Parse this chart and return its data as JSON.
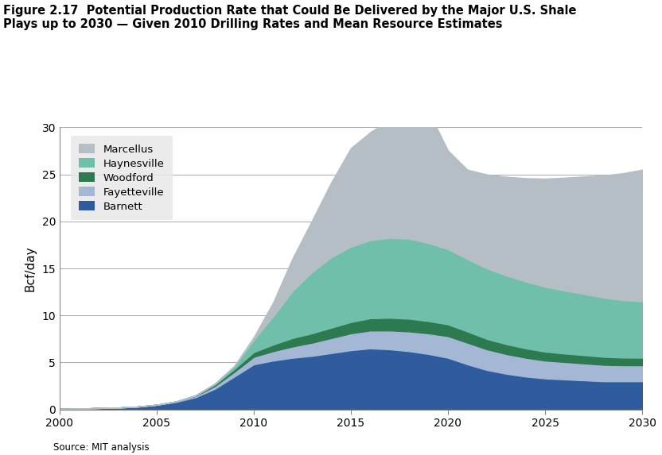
{
  "title_line1": "Figure 2.17  Potential Production Rate that Could Be Delivered by the Major U.S. Shale",
  "title_line2": "Plays up to 2030 — Given 2010 Drilling Rates and Mean Resource Estimates",
  "ylabel": "Bcf/day",
  "source": "Source: MIT analysis",
  "xlim": [
    2000,
    2030
  ],
  "ylim": [
    0,
    30
  ],
  "yticks": [
    0,
    5,
    10,
    15,
    20,
    25,
    30
  ],
  "xticks": [
    2000,
    2005,
    2010,
    2015,
    2020,
    2025,
    2030
  ],
  "years": [
    2000,
    2001,
    2002,
    2003,
    2004,
    2005,
    2006,
    2007,
    2008,
    2009,
    2010,
    2011,
    2012,
    2013,
    2014,
    2015,
    2016,
    2017,
    2018,
    2019,
    2020,
    2021,
    2022,
    2023,
    2024,
    2025,
    2026,
    2027,
    2028,
    2029,
    2030
  ],
  "barnett": [
    0.05,
    0.1,
    0.15,
    0.2,
    0.3,
    0.5,
    0.8,
    1.3,
    2.2,
    3.5,
    4.8,
    5.2,
    5.5,
    5.7,
    6.0,
    6.3,
    6.5,
    6.4,
    6.2,
    5.9,
    5.5,
    4.8,
    4.2,
    3.8,
    3.5,
    3.3,
    3.2,
    3.1,
    3.0,
    3.0,
    3.0
  ],
  "fayetteville": [
    0.0,
    0.0,
    0.0,
    0.0,
    0.0,
    0.0,
    0.05,
    0.15,
    0.3,
    0.5,
    0.8,
    1.0,
    1.2,
    1.4,
    1.6,
    1.8,
    1.9,
    2.0,
    2.1,
    2.2,
    2.3,
    2.3,
    2.2,
    2.1,
    2.0,
    1.9,
    1.85,
    1.8,
    1.75,
    1.7,
    1.7
  ],
  "woodford": [
    0.0,
    0.0,
    0.0,
    0.0,
    0.0,
    0.0,
    0.0,
    0.05,
    0.15,
    0.3,
    0.5,
    0.7,
    0.9,
    1.0,
    1.1,
    1.2,
    1.3,
    1.35,
    1.35,
    1.3,
    1.25,
    1.2,
    1.1,
    1.05,
    1.0,
    0.95,
    0.9,
    0.88,
    0.85,
    0.82,
    0.8
  ],
  "haynesville": [
    0.0,
    0.0,
    0.0,
    0.0,
    0.0,
    0.0,
    0.0,
    0.0,
    0.1,
    0.3,
    1.3,
    3.0,
    5.0,
    6.5,
    7.5,
    8.0,
    8.3,
    8.5,
    8.5,
    8.3,
    8.0,
    7.7,
    7.5,
    7.3,
    7.1,
    6.9,
    6.7,
    6.5,
    6.3,
    6.1,
    6.0
  ],
  "marcellus": [
    0.0,
    0.0,
    0.0,
    0.0,
    0.0,
    0.0,
    0.0,
    0.0,
    0.0,
    0.05,
    0.3,
    1.5,
    3.5,
    5.5,
    8.0,
    10.5,
    11.5,
    12.5,
    13.5,
    14.0,
    10.5,
    9.5,
    10.0,
    10.5,
    11.0,
    11.5,
    12.0,
    12.5,
    13.0,
    13.5,
    14.0
  ],
  "colors": {
    "barnett": "#2e5c9e",
    "fayetteville": "#a4b8d5",
    "woodford": "#2e7a50",
    "haynesville": "#70bfaa",
    "marcellus": "#b5bec5"
  },
  "legend_labels": [
    "Marcellus",
    "Haynesville",
    "Woodford",
    "Fayetteville",
    "Barnett"
  ],
  "legend_colors": [
    "#b5bec5",
    "#70bfaa",
    "#2e7a50",
    "#a4b8d5",
    "#2e5c9e"
  ]
}
